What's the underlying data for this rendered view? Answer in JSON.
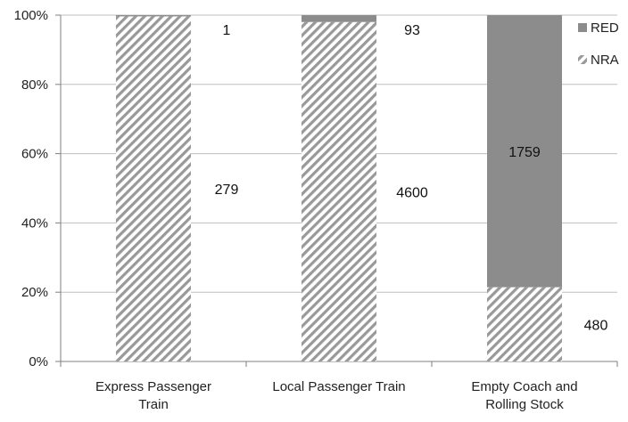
{
  "chart_data": {
    "type": "bar",
    "stacked": true,
    "normalized": true,
    "categories": [
      [
        "Express Passenger",
        "Train"
      ],
      [
        "Local Passenger Train"
      ],
      [
        "Empty Coach and",
        "Rolling Stock"
      ]
    ],
    "series": [
      {
        "name": "NRA",
        "values": [
          279,
          4600,
          480
        ],
        "pattern": "diagonal-hatch",
        "color": "#999999"
      },
      {
        "name": "RED",
        "values": [
          1,
          93,
          1759
        ],
        "pattern": "solid",
        "color": "#8c8c8c"
      }
    ],
    "ylim": [
      0,
      100
    ],
    "yticks": [
      "0%",
      "20%",
      "40%",
      "60%",
      "80%",
      "100%"
    ],
    "grid": true,
    "legend_position": "top-right",
    "legend_order": [
      "RED",
      "NRA"
    ],
    "title": "",
    "xlabel": "",
    "ylabel": ""
  }
}
